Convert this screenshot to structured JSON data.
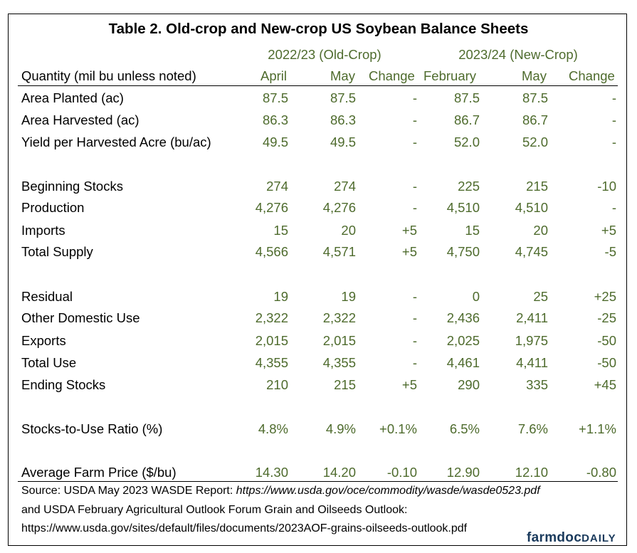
{
  "title": "Table 2. Old-crop and New-crop US Soybean Balance Sheets",
  "groups": {
    "old": "2022/23 (Old-Crop)",
    "new": "2023/24 (New-Crop)"
  },
  "headers": {
    "quantity": "Quantity (mil bu unless noted)",
    "c1": "April",
    "c2": "May",
    "c3": "Change",
    "c4": "February",
    "c5": "May",
    "c6": "Change"
  },
  "rows": [
    {
      "label": "Area Planted (ac)",
      "v": [
        "87.5",
        "87.5",
        "-",
        "87.5",
        "87.5",
        "-"
      ]
    },
    {
      "label": "Area Harvested (ac)",
      "v": [
        "86.3",
        "86.3",
        "-",
        "86.7",
        "86.7",
        "-"
      ]
    },
    {
      "label": "Yield per Harvested Acre (bu/ac)",
      "v": [
        "49.5",
        "49.5",
        "-",
        "52.0",
        "52.0",
        "-"
      ]
    },
    {
      "label": "Beginning Stocks",
      "v": [
        "274",
        "274",
        "-",
        "225",
        "215",
        "-10"
      ]
    },
    {
      "label": "Production",
      "v": [
        "4,276",
        "4,276",
        "-",
        "4,510",
        "4,510",
        "-"
      ]
    },
    {
      "label": "Imports",
      "v": [
        "15",
        "20",
        "+5",
        "15",
        "20",
        "+5"
      ]
    },
    {
      "label": "Total Supply",
      "v": [
        "4,566",
        "4,571",
        "+5",
        "4,750",
        "4,745",
        "-5"
      ]
    },
    {
      "label": "Residual",
      "v": [
        "19",
        "19",
        "-",
        "0",
        "25",
        "+25"
      ]
    },
    {
      "label": "Other Domestic Use",
      "v": [
        "2,322",
        "2,322",
        "-",
        "2,436",
        "2,411",
        "-25"
      ]
    },
    {
      "label": "Exports",
      "v": [
        "2,015",
        "2,015",
        "-",
        "2,025",
        "1,975",
        "-50"
      ]
    },
    {
      "label": "Total Use",
      "v": [
        "4,355",
        "4,355",
        "-",
        "4,461",
        "4,411",
        "-50"
      ]
    },
    {
      "label": "Ending Stocks",
      "v": [
        "210",
        "215",
        "+5",
        "290",
        "335",
        "+45"
      ]
    },
    {
      "label": "Stocks-to-Use Ratio (%)",
      "v": [
        "4.8%",
        "4.9%",
        "+0.1%",
        "6.5%",
        "7.6%",
        "+1.1%"
      ]
    },
    {
      "label": "Average Farm Price ($/bu)",
      "v": [
        "14.30",
        "14.20",
        "-0.10",
        "12.90",
        "12.10",
        "-0.80"
      ]
    }
  ],
  "source": {
    "line1_prefix": "Source: USDA May 2023 WASDE Report: ",
    "line1_url": "https://www.usda.gov/oce/commodity/wasde/wasde0523.pdf",
    "line2": "and USDA February Agricultural Outlook Forum Grain and Oilseeds Outlook:",
    "line3": "https://www.usda.gov/sites/default/files/documents/2023AOF-grains-oilseeds-outlook.pdf"
  },
  "logo": {
    "part1": "farmdoc",
    "part2": "DAILY"
  }
}
